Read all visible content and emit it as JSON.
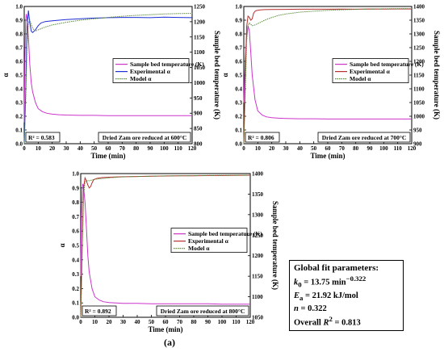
{
  "caption": "(a)",
  "colors": {
    "temperature": "#cc33cc",
    "experimental_top": "#1f2fd6",
    "experimental_bottom": "#b5302f",
    "model": "#5a8a3a"
  },
  "params_box": {
    "title": "Global fit parameters:",
    "k0_label": "k",
    "k0_sub": "0",
    "k0_value": "= 13.75 min",
    "k0_unit_exp": "−0.322",
    "ea_label": "E",
    "ea_sub": "a",
    "ea_value": "= 21.92 kJ/mol",
    "n_label": "n",
    "n_value": "= 0.322",
    "overall_prefix": "Overall ",
    "overall_r": "R",
    "overall_exp": "2",
    "overall_value": " = 0.813"
  },
  "chart_data": [
    {
      "type": "line",
      "condition": "Dried Zam ore reduced at 600°C",
      "r2": "R² = 0.583",
      "xlabel": "Time (min)",
      "ylabel": "α",
      "y2label": "Sample bed temperature (K)",
      "xlim": [
        0,
        120
      ],
      "ylim": [
        0,
        1.0
      ],
      "y2lim": [
        800,
        1250
      ],
      "xticks": [
        0,
        10,
        20,
        30,
        40,
        50,
        60,
        70,
        80,
        90,
        100,
        110,
        120
      ],
      "yticks": [
        0,
        0.1,
        0.2,
        0.3,
        0.4,
        0.5,
        0.6,
        0.7,
        0.8,
        0.9,
        1.0
      ],
      "y2ticks": [
        800,
        850,
        900,
        950,
        1000,
        1050,
        1100,
        1150,
        1200,
        1250
      ],
      "legend": [
        "Sample bed temperature (K)",
        "Experimental α",
        "Model α"
      ],
      "series": [
        {
          "name": "Sample bed temperature (K)",
          "axis": "right",
          "color": "#cc33cc",
          "x": [
            0,
            0.5,
            1,
            1.5,
            2,
            3,
            4,
            5,
            6,
            8,
            10,
            13,
            16,
            20,
            25,
            30,
            40,
            50,
            60,
            70,
            80,
            90,
            100,
            110,
            120
          ],
          "y": [
            870,
            1080,
            1200,
            1225,
            1212,
            1150,
            1060,
            1000,
            970,
            935,
            915,
            905,
            900,
            897,
            895,
            894,
            893,
            893,
            892,
            892,
            892,
            892,
            892,
            892,
            892
          ]
        },
        {
          "name": "Experimental α",
          "axis": "left",
          "color": "#1f2fd6",
          "x": [
            0,
            1,
            2,
            3,
            4,
            5,
            6,
            8,
            10,
            12,
            15,
            20,
            25,
            30,
            40,
            50,
            60,
            70,
            80,
            90,
            100,
            110,
            120
          ],
          "y": [
            0,
            0.35,
            0.85,
            0.97,
            0.88,
            0.82,
            0.81,
            0.83,
            0.86,
            0.88,
            0.89,
            0.895,
            0.9,
            0.905,
            0.91,
            0.915,
            0.918,
            0.92,
            0.92,
            0.918,
            0.922,
            0.92,
            0.918
          ]
        },
        {
          "name": "Model α",
          "axis": "left",
          "color": "#5a8a3a",
          "x": [
            0,
            1,
            2,
            3,
            4,
            5,
            6,
            8,
            10,
            15,
            20,
            25,
            30,
            40,
            50,
            60,
            70,
            80,
            90,
            100,
            110,
            120
          ],
          "y": [
            0,
            0.3,
            0.72,
            0.88,
            0.9,
            0.87,
            0.84,
            0.82,
            0.83,
            0.85,
            0.865,
            0.875,
            0.885,
            0.9,
            0.91,
            0.92,
            0.928,
            0.935,
            0.94,
            0.945,
            0.948,
            0.95
          ]
        }
      ]
    },
    {
      "type": "line",
      "condition": "Dried Zam ore reduced at 700°C",
      "r2": "R² = 0.806",
      "xlabel": "Time (min)",
      "ylabel": "α",
      "y2label": "Sample bed temperature (K)",
      "xlim": [
        0,
        120
      ],
      "ylim": [
        0,
        1.0
      ],
      "y2lim": [
        900,
        1400
      ],
      "xticks": [
        0,
        10,
        20,
        30,
        40,
        50,
        60,
        70,
        80,
        90,
        100,
        110,
        120
      ],
      "yticks": [
        0,
        0.1,
        0.2,
        0.3,
        0.4,
        0.5,
        0.6,
        0.7,
        0.8,
        0.9,
        1.0
      ],
      "y2ticks": [
        900,
        950,
        1000,
        1050,
        1100,
        1150,
        1200,
        1250,
        1300,
        1350,
        1400
      ],
      "legend": [
        "Sample bed temperature (K)",
        "Experimental α",
        "Model α"
      ],
      "series": [
        {
          "name": "Sample bed temperature (K)",
          "axis": "right",
          "color": "#cc33cc",
          "x": [
            0,
            1,
            2,
            3,
            4,
            5,
            6,
            8,
            10,
            13,
            16,
            20,
            25,
            30,
            40,
            50,
            60,
            70,
            80,
            90,
            100,
            110,
            120
          ],
          "y": [
            1050,
            1200,
            1290,
            1330,
            1310,
            1230,
            1150,
            1060,
            1020,
            1005,
            998,
            995,
            993,
            992,
            991,
            991,
            990,
            990,
            990,
            990,
            990,
            990,
            990
          ]
        },
        {
          "name": "Experimental α",
          "axis": "left",
          "color": "#b5302f",
          "x": [
            0,
            1,
            2,
            3,
            4,
            5,
            6,
            7,
            8,
            9,
            10,
            12,
            15,
            20,
            30,
            40,
            50,
            60,
            70,
            80,
            90,
            100,
            110,
            120
          ],
          "y": [
            0,
            0.45,
            0.85,
            0.93,
            0.92,
            0.9,
            0.91,
            0.95,
            0.965,
            0.97,
            0.972,
            0.975,
            0.977,
            0.978,
            0.979,
            0.98,
            0.98,
            0.98,
            0.981,
            0.98,
            0.982,
            0.981,
            0.982,
            0.982
          ]
        },
        {
          "name": "Model α",
          "axis": "left",
          "color": "#5a8a3a",
          "x": [
            0,
            1,
            2,
            3,
            4,
            5,
            6,
            8,
            10,
            15,
            20,
            25,
            30,
            40,
            50,
            60,
            70,
            80,
            90,
            100,
            110,
            120
          ],
          "y": [
            0,
            0.35,
            0.75,
            0.86,
            0.88,
            0.87,
            0.86,
            0.865,
            0.875,
            0.9,
            0.92,
            0.935,
            0.945,
            0.958,
            0.966,
            0.972,
            0.976,
            0.979,
            0.981,
            0.983,
            0.984,
            0.985
          ]
        }
      ]
    },
    {
      "type": "line",
      "condition": "Dried Zam ore reduced at 800°C",
      "r2": "R² = 0.892",
      "xlabel": "Time (min)",
      "ylabel": "α",
      "y2label": "Sample bed temperature (K)",
      "xlim": [
        0,
        120
      ],
      "ylim": [
        0,
        1.0
      ],
      "y2lim": [
        1050,
        1400
      ],
      "xticks": [
        0,
        10,
        20,
        30,
        40,
        50,
        60,
        70,
        80,
        90,
        100,
        110,
        120
      ],
      "yticks": [
        0,
        0.1,
        0.2,
        0.3,
        0.4,
        0.5,
        0.6,
        0.7,
        0.8,
        0.9,
        1.0
      ],
      "y2ticks": [
        1050,
        1100,
        1150,
        1200,
        1250,
        1300,
        1350,
        1400
      ],
      "legend": [
        "Sample bed temperature (K)",
        "Experimental α",
        "Model α"
      ],
      "series": [
        {
          "name": "Sample bed temperature (K)",
          "axis": "right",
          "color": "#cc33cc",
          "x": [
            0,
            0.5,
            1,
            1.5,
            2,
            3,
            4,
            5,
            6,
            8,
            10,
            13,
            16,
            20,
            25,
            30,
            40,
            50,
            60,
            70,
            80,
            90,
            100,
            110,
            120
          ],
          "y": [
            1150,
            1300,
            1360,
            1375,
            1368,
            1330,
            1270,
            1200,
            1160,
            1120,
            1100,
            1092,
            1088,
            1086,
            1085,
            1084,
            1084,
            1083,
            1083,
            1083,
            1083,
            1083,
            1082,
            1082,
            1082
          ]
        },
        {
          "name": "Experimental α",
          "axis": "left",
          "color": "#b5302f",
          "x": [
            0,
            1,
            2,
            3,
            4,
            5,
            6,
            7,
            8,
            9,
            10,
            12,
            15,
            20,
            30,
            40,
            50,
            60,
            70,
            80,
            90,
            100,
            110,
            120
          ],
          "y": [
            0,
            0.5,
            0.9,
            0.97,
            0.95,
            0.92,
            0.9,
            0.91,
            0.935,
            0.955,
            0.962,
            0.968,
            0.972,
            0.975,
            0.978,
            0.98,
            0.982,
            0.983,
            0.984,
            0.985,
            0.986,
            0.986,
            0.987,
            0.988
          ]
        },
        {
          "name": "Model α",
          "axis": "left",
          "color": "#5a8a3a",
          "x": [
            0,
            1,
            2,
            3,
            4,
            5,
            6,
            8,
            10,
            15,
            20,
            25,
            30,
            40,
            50,
            60,
            70,
            80,
            90,
            100,
            110,
            120
          ],
          "y": [
            0,
            0.45,
            0.85,
            0.94,
            0.95,
            0.95,
            0.95,
            0.955,
            0.96,
            0.965,
            0.97,
            0.974,
            0.977,
            0.98,
            0.982,
            0.984,
            0.985,
            0.986,
            0.987,
            0.988,
            0.988,
            0.989
          ]
        }
      ]
    }
  ]
}
